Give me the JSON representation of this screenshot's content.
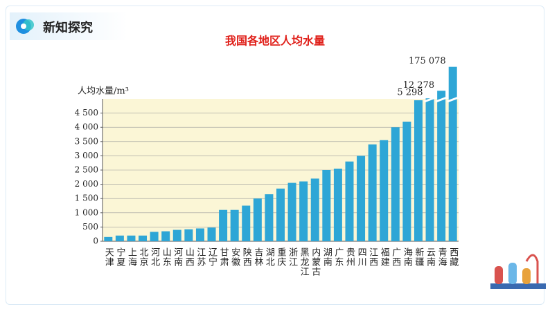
{
  "header": {
    "title": "新知探究"
  },
  "chart_data": {
    "type": "bar",
    "title": "我国各地区人均水量",
    "y_label": "人均水量/m³",
    "categories": [
      "天津",
      "宁夏",
      "上海",
      "北京",
      "河北",
      "山东",
      "河南",
      "山西",
      "江苏",
      "辽宁",
      "甘肃",
      "安徽",
      "陕西",
      "吉林",
      "湖北",
      "重庆",
      "浙江",
      "黑龙江",
      "内蒙古",
      "湖南",
      "广东",
      "贵州",
      "四川",
      "江西",
      "福建",
      "广西",
      "海南",
      "新疆",
      "云南",
      "青海",
      "西藏"
    ],
    "values": [
      150,
      200,
      200,
      200,
      330,
      350,
      400,
      420,
      450,
      480,
      1100,
      1100,
      1250,
      1500,
      1650,
      1850,
      2050,
      2100,
      2200,
      2500,
      2550,
      2800,
      3000,
      3400,
      3550,
      4000,
      4200,
      4950,
      5298,
      12278,
      175078
    ],
    "value_labels": [
      null,
      null,
      null,
      null,
      null,
      null,
      null,
      null,
      null,
      null,
      null,
      null,
      null,
      null,
      null,
      null,
      null,
      null,
      null,
      null,
      null,
      null,
      null,
      null,
      null,
      null,
      null,
      null,
      "5 298",
      "12 278",
      "175 078"
    ],
    "color": "#2ea6d6",
    "ylim": [
      0,
      5000
    ],
    "yticks": [
      0,
      500,
      {
        "value": 1000,
        "label": "1 000"
      },
      {
        "value": 1500,
        "label": "1 500"
      },
      {
        "value": 2000,
        "label": "2 000"
      },
      {
        "value": 2500,
        "label": "2 500"
      },
      {
        "value": 3000,
        "label": "3 000"
      },
      {
        "value": 3500,
        "label": "3 500"
      },
      {
        "value": 4000,
        "label": "4 000"
      },
      {
        "value": 4500,
        "label": "4 500"
      }
    ],
    "grid": true
  }
}
